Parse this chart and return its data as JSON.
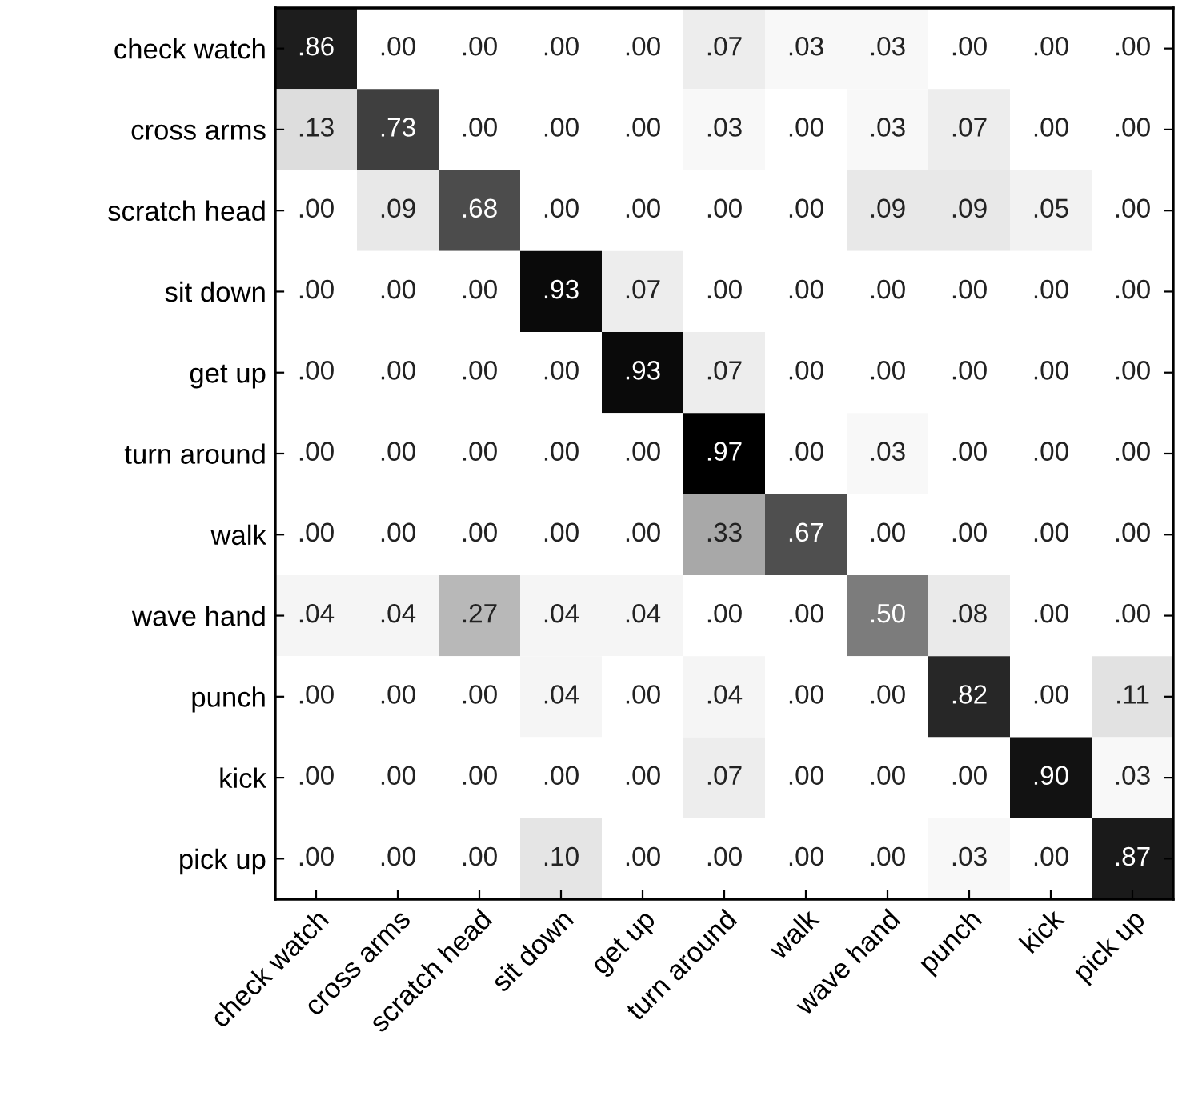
{
  "chart_data": {
    "type": "heatmap",
    "categories": [
      "check watch",
      "cross arms",
      "scratch head",
      "sit down",
      "get up",
      "turn around",
      "walk",
      "wave hand",
      "punch",
      "kick",
      "pick up"
    ],
    "y_categories": [
      "check watch",
      "cross arms",
      "scratch head",
      "sit down",
      "get up",
      "turn around",
      "walk",
      "wave hand",
      "punch",
      "kick",
      "pick up"
    ],
    "cells": [
      [
        0.86,
        0.0,
        0.0,
        0.0,
        0.0,
        0.07,
        0.03,
        0.03,
        0.0,
        0.0,
        0.0
      ],
      [
        0.13,
        0.73,
        0.0,
        0.0,
        0.0,
        0.03,
        0.0,
        0.03,
        0.07,
        0.0,
        0.0
      ],
      [
        0.0,
        0.09,
        0.68,
        0.0,
        0.0,
        0.0,
        0.0,
        0.09,
        0.09,
        0.05,
        0.0
      ],
      [
        0.0,
        0.0,
        0.0,
        0.93,
        0.07,
        0.0,
        0.0,
        0.0,
        0.0,
        0.0,
        0.0
      ],
      [
        0.0,
        0.0,
        0.0,
        0.0,
        0.93,
        0.07,
        0.0,
        0.0,
        0.0,
        0.0,
        0.0
      ],
      [
        0.0,
        0.0,
        0.0,
        0.0,
        0.0,
        0.97,
        0.0,
        0.03,
        0.0,
        0.0,
        0.0
      ],
      [
        0.0,
        0.0,
        0.0,
        0.0,
        0.0,
        0.33,
        0.67,
        0.0,
        0.0,
        0.0,
        0.0
      ],
      [
        0.04,
        0.04,
        0.27,
        0.04,
        0.04,
        0.0,
        0.0,
        0.5,
        0.08,
        0.0,
        0.0
      ],
      [
        0.0,
        0.0,
        0.0,
        0.04,
        0.0,
        0.04,
        0.0,
        0.0,
        0.82,
        0.0,
        0.11
      ],
      [
        0.0,
        0.0,
        0.0,
        0.0,
        0.0,
        0.07,
        0.0,
        0.0,
        0.0,
        0.9,
        0.03
      ],
      [
        0.0,
        0.0,
        0.0,
        0.1,
        0.0,
        0.0,
        0.0,
        0.0,
        0.03,
        0.0,
        0.87
      ]
    ],
    "cell_labels": [
      [
        ".86",
        ".00",
        ".00",
        ".00",
        ".00",
        ".07",
        ".03",
        ".03",
        ".00",
        ".00",
        ".00"
      ],
      [
        ".13",
        ".73",
        ".00",
        ".00",
        ".00",
        ".03",
        ".00",
        ".03",
        ".07",
        ".00",
        ".00"
      ],
      [
        ".00",
        ".09",
        ".68",
        ".00",
        ".00",
        ".00",
        ".00",
        ".09",
        ".09",
        ".05",
        ".00"
      ],
      [
        ".00",
        ".00",
        ".00",
        ".93",
        ".07",
        ".00",
        ".00",
        ".00",
        ".00",
        ".00",
        ".00"
      ],
      [
        ".00",
        ".00",
        ".00",
        ".00",
        ".93",
        ".07",
        ".00",
        ".00",
        ".00",
        ".00",
        ".00"
      ],
      [
        ".00",
        ".00",
        ".00",
        ".00",
        ".00",
        ".97",
        ".00",
        ".03",
        ".00",
        ".00",
        ".00"
      ],
      [
        ".00",
        ".00",
        ".00",
        ".00",
        ".00",
        ".33",
        ".67",
        ".00",
        ".00",
        ".00",
        ".00"
      ],
      [
        ".04",
        ".04",
        ".27",
        ".04",
        ".04",
        ".00",
        ".00",
        ".50",
        ".08",
        ".00",
        ".00"
      ],
      [
        ".00",
        ".00",
        ".00",
        ".04",
        ".00",
        ".04",
        ".00",
        ".00",
        ".82",
        ".00",
        ".11"
      ],
      [
        ".00",
        ".00",
        ".00",
        ".00",
        ".00",
        ".07",
        ".00",
        ".00",
        ".00",
        ".90",
        ".03"
      ],
      [
        ".00",
        ".00",
        ".00",
        ".10",
        ".00",
        ".00",
        ".00",
        ".00",
        ".03",
        ".00",
        ".87"
      ]
    ]
  }
}
